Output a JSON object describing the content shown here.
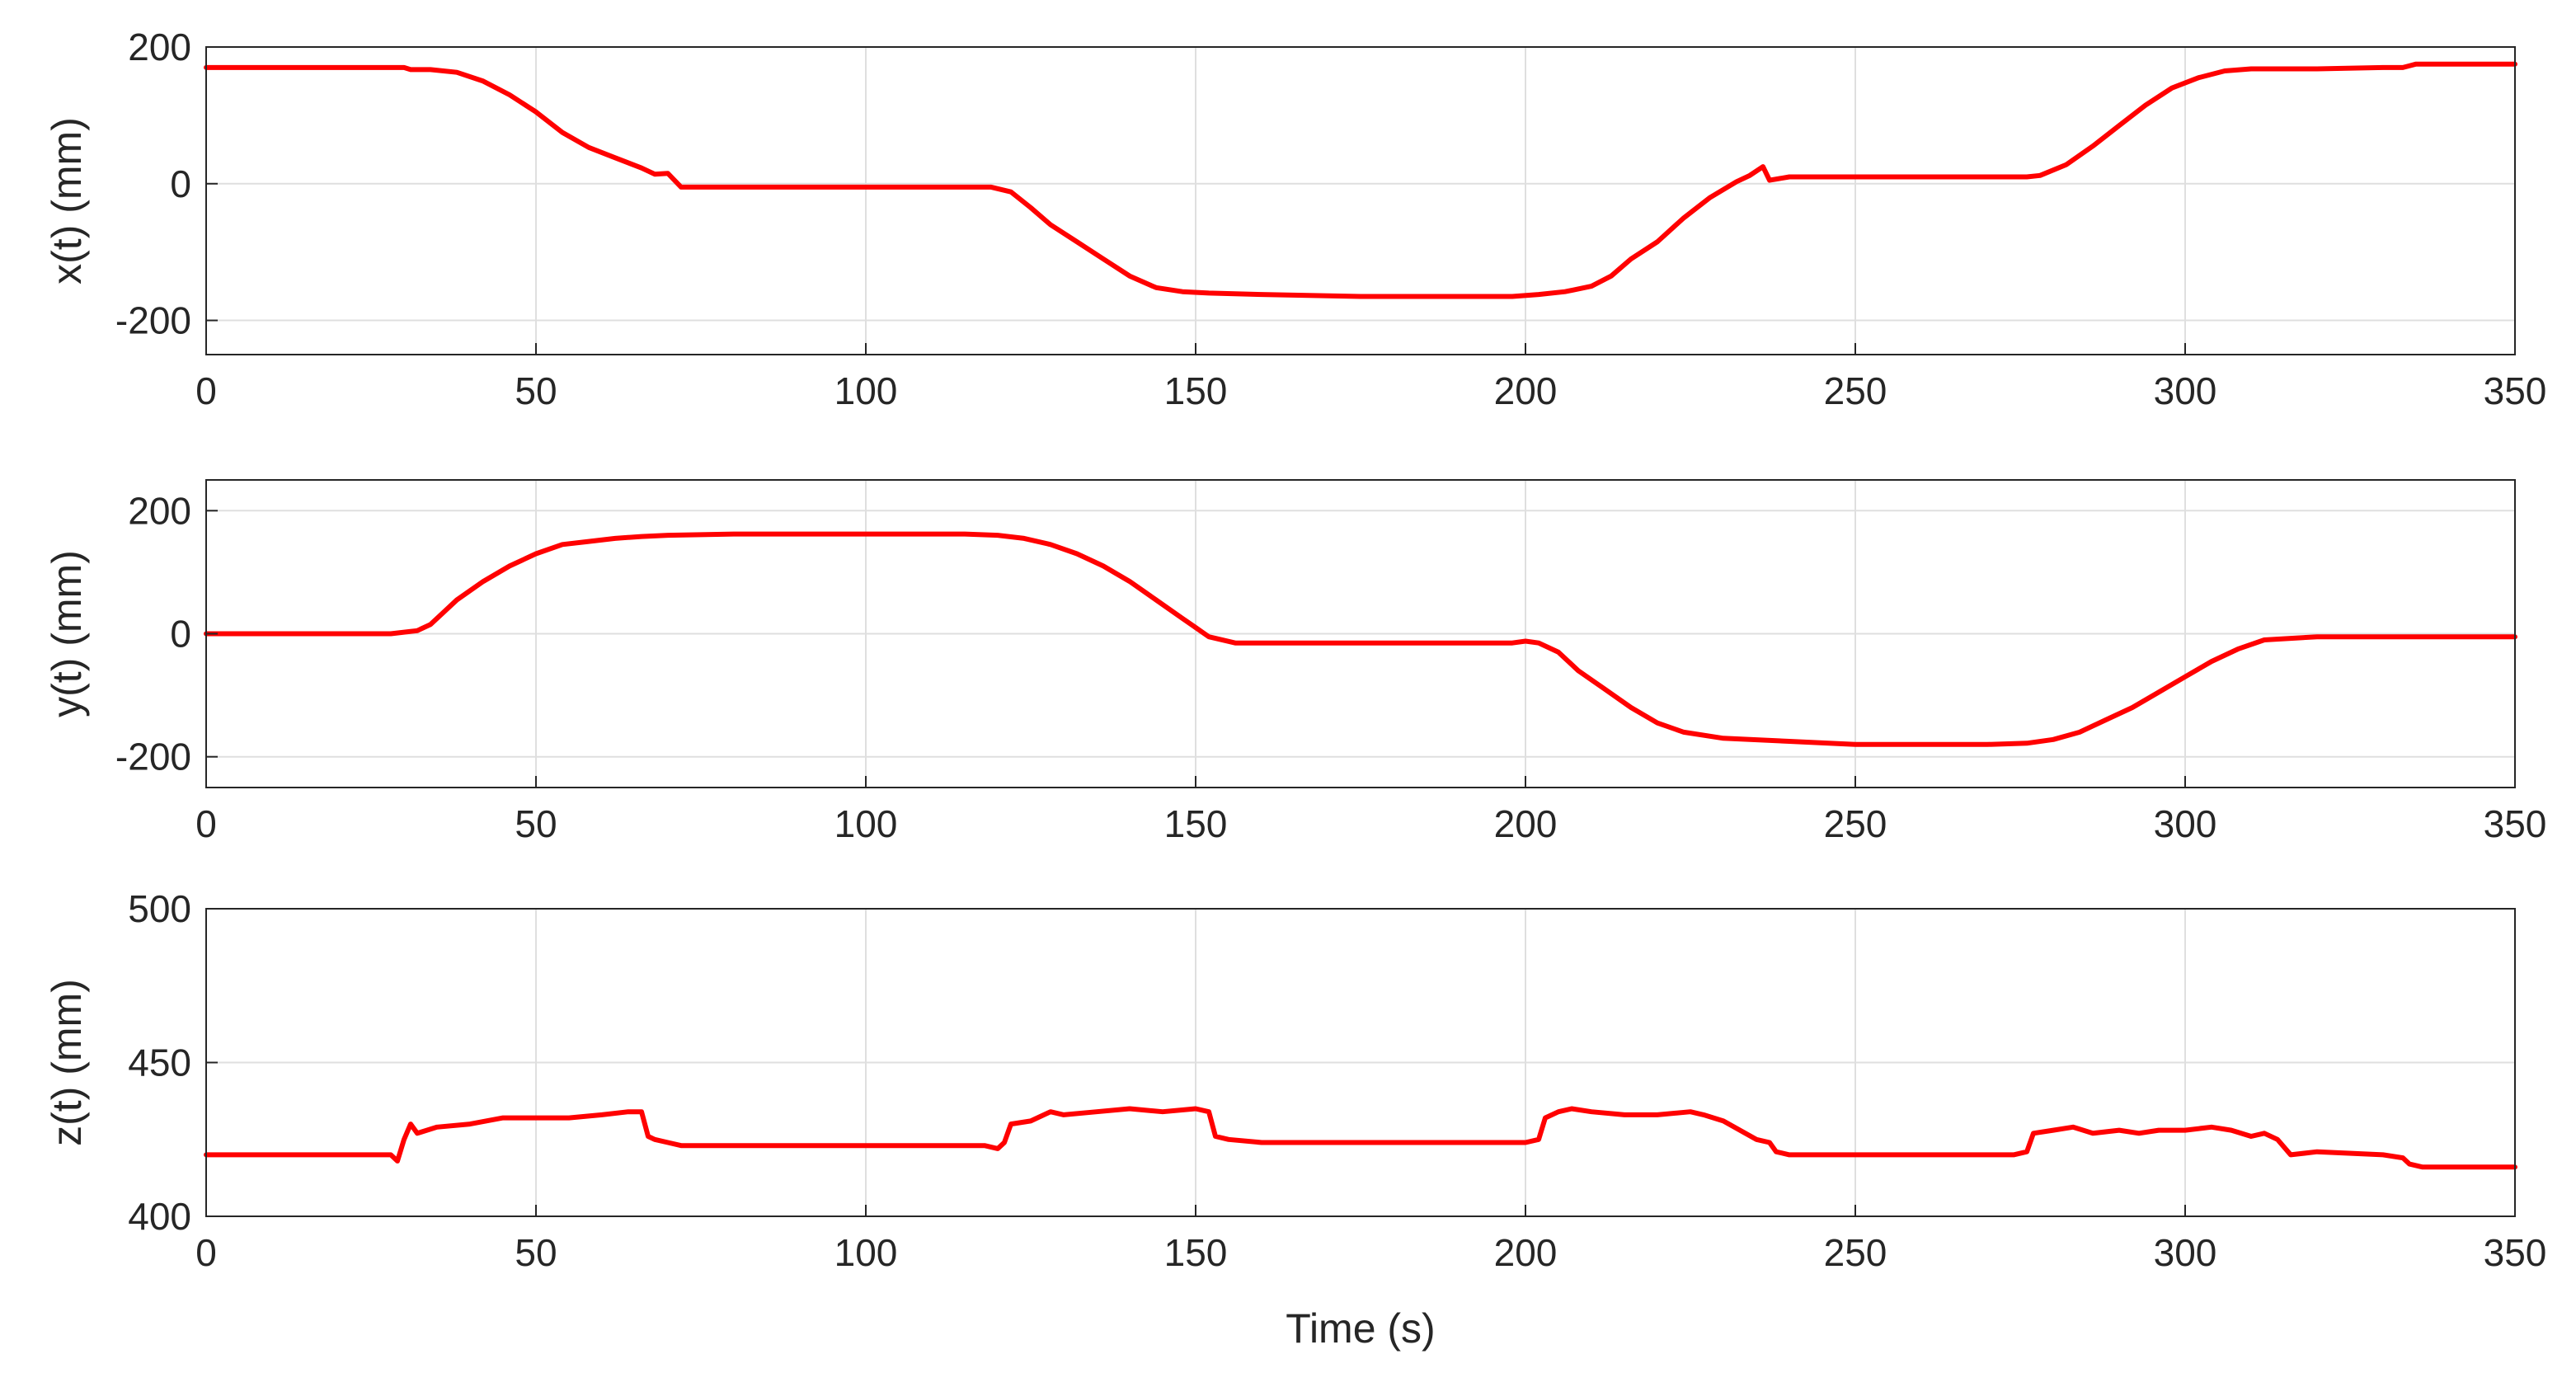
{
  "figure": {
    "xlabel": "Time (s)",
    "series_color": "#ff0000",
    "grid": true
  },
  "chart_data": [
    {
      "type": "line",
      "id": "x",
      "ylabel": "x(t) (mm)",
      "xlim": [
        0,
        350
      ],
      "ylim": [
        -250,
        200
      ],
      "xticks": [
        0,
        50,
        100,
        150,
        200,
        250,
        300,
        350
      ],
      "yticks": [
        -200,
        0,
        200
      ],
      "series": [
        {
          "x": [
            0,
            10,
            20,
            28,
            30,
            31,
            34,
            38,
            42,
            46,
            50,
            54,
            58,
            62,
            66,
            68,
            70,
            72,
            80,
            100,
            115,
            119,
            122,
            125,
            128,
            132,
            136,
            140,
            144,
            148,
            152,
            160,
            175,
            190,
            198,
            202,
            206,
            210,
            213,
            216,
            220,
            224,
            228,
            232,
            234,
            236,
            237,
            240,
            250,
            260,
            270,
            276,
            278,
            282,
            286,
            290,
            294,
            298,
            302,
            306,
            310,
            316,
            320,
            330,
            333,
            335,
            340,
            350
          ],
          "y": [
            170,
            170,
            170,
            170,
            170,
            167,
            167,
            163,
            150,
            130,
            105,
            75,
            53,
            38,
            23,
            14,
            15,
            -5,
            -5,
            -5,
            -5,
            -5,
            -12,
            -35,
            -60,
            -85,
            -110,
            -135,
            -152,
            -158,
            -160,
            -162,
            -165,
            -165,
            -165,
            -162,
            -158,
            -150,
            -135,
            -110,
            -85,
            -50,
            -20,
            3,
            12,
            25,
            5,
            10,
            10,
            10,
            10,
            10,
            12,
            28,
            55,
            85,
            115,
            140,
            155,
            165,
            168,
            168,
            168,
            170,
            170,
            175,
            175,
            175
          ]
        }
      ]
    },
    {
      "type": "line",
      "id": "y",
      "ylabel": "y(t) (mm)",
      "xlim": [
        0,
        350
      ],
      "ylim": [
        -250,
        250
      ],
      "xticks": [
        0,
        50,
        100,
        150,
        200,
        250,
        300,
        350
      ],
      "yticks": [
        -200,
        0,
        200
      ],
      "series": [
        {
          "x": [
            0,
            10,
            20,
            28,
            32,
            34,
            36,
            38,
            42,
            46,
            50,
            54,
            58,
            62,
            66,
            70,
            80,
            100,
            115,
            120,
            124,
            128,
            132,
            136,
            140,
            144,
            148,
            150,
            152,
            156,
            170,
            190,
            198,
            200,
            202,
            205,
            208,
            212,
            216,
            220,
            224,
            230,
            240,
            250,
            260,
            270,
            276,
            280,
            284,
            288,
            292,
            296,
            300,
            304,
            308,
            312,
            320,
            330,
            350
          ],
          "y": [
            0,
            0,
            0,
            0,
            5,
            15,
            35,
            55,
            85,
            110,
            130,
            145,
            150,
            155,
            158,
            160,
            162,
            162,
            162,
            160,
            155,
            145,
            130,
            110,
            85,
            55,
            25,
            10,
            -5,
            -15,
            -15,
            -15,
            -15,
            -12,
            -15,
            -30,
            -60,
            -90,
            -120,
            -145,
            -160,
            -170,
            -175,
            -180,
            -180,
            -180,
            -178,
            -172,
            -160,
            -140,
            -120,
            -95,
            -70,
            -45,
            -25,
            -10,
            -5,
            -5,
            -5
          ]
        }
      ]
    },
    {
      "type": "line",
      "id": "z",
      "ylabel": "z(t) (mm)",
      "xlim": [
        0,
        350
      ],
      "ylim": [
        400,
        500
      ],
      "xticks": [
        0,
        50,
        100,
        150,
        200,
        250,
        300,
        350
      ],
      "yticks": [
        400,
        450,
        500
      ],
      "series": [
        {
          "x": [
            0,
            10,
            20,
            28,
            29,
            30,
            31,
            32,
            35,
            40,
            45,
            50,
            55,
            60,
            64,
            66,
            67,
            68,
            70,
            72,
            80,
            100,
            115,
            118,
            120,
            121,
            122,
            125,
            128,
            130,
            135,
            140,
            145,
            150,
            152,
            153,
            155,
            160,
            180,
            200,
            202,
            203,
            205,
            207,
            210,
            215,
            220,
            225,
            227,
            230,
            235,
            237,
            238,
            240,
            250,
            260,
            270,
            274,
            276,
            277,
            280,
            283,
            286,
            290,
            293,
            296,
            300,
            304,
            307,
            310,
            312,
            314,
            316,
            320,
            330,
            333,
            334,
            336,
            340,
            350
          ],
          "y": [
            420,
            420,
            420,
            420,
            418,
            425,
            430,
            427,
            429,
            430,
            432,
            432,
            432,
            433,
            434,
            434,
            426,
            425,
            424,
            423,
            423,
            423,
            423,
            423,
            422,
            424,
            430,
            431,
            434,
            433,
            434,
            435,
            434,
            435,
            434,
            426,
            425,
            424,
            424,
            424,
            425,
            432,
            434,
            435,
            434,
            433,
            433,
            434,
            433,
            431,
            425,
            424,
            421,
            420,
            420,
            420,
            420,
            420,
            421,
            427,
            428,
            429,
            427,
            428,
            427,
            428,
            428,
            429,
            428,
            426,
            427,
            425,
            420,
            421,
            420,
            419,
            417,
            416,
            416,
            416
          ]
        }
      ]
    }
  ]
}
